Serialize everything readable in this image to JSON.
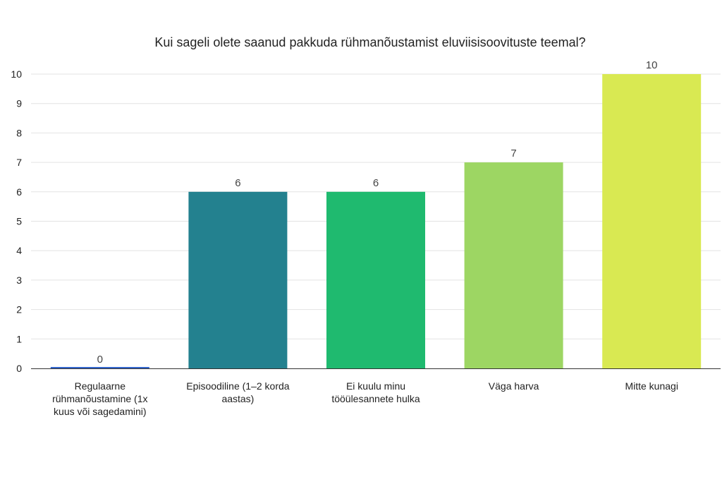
{
  "chart_data": {
    "type": "bar",
    "title": "Kui sageli olete saanud pakkuda rühmanõustamist eluviisisoovituste teemal?",
    "categories": [
      "Regulaarne rühmanõustamine (1x kuus või sagedamini)",
      "Episoodiline (1–2 korda aastas)",
      "Ei kuulu minu tööülesannete hulka",
      "Väga harva",
      "Mitte kunagi"
    ],
    "category_lines": [
      [
        "Regulaarne",
        "rühmanõustamine (1x",
        "kuus või sagedamini)"
      ],
      [
        "Episoodiline (1–2 korda",
        "aastas)"
      ],
      [
        "Ei kuulu minu",
        "tööülesannete hulka"
      ],
      [
        "Väga harva"
      ],
      [
        "Mitte kunagi"
      ]
    ],
    "values": [
      0,
      6,
      6,
      7,
      10
    ],
    "colors": [
      "#3366cc",
      "#23818f",
      "#1fba6f",
      "#9dd663",
      "#d9e952"
    ],
    "ylim": [
      0,
      10
    ],
    "yticks": [
      0,
      1,
      2,
      3,
      4,
      5,
      6,
      7,
      8,
      9,
      10
    ],
    "grid": true,
    "legend": "none",
    "xlabel": "",
    "ylabel": ""
  }
}
